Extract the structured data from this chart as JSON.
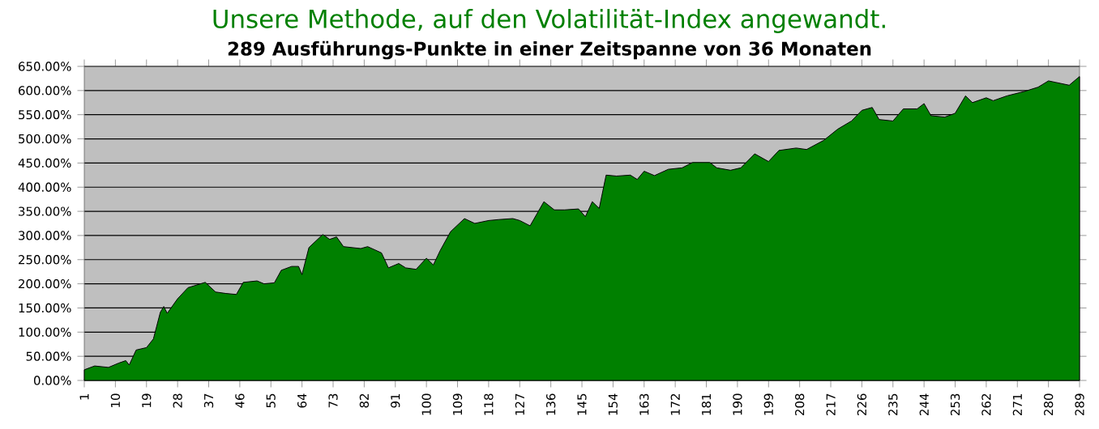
{
  "chart_data": {
    "type": "area",
    "title": "Unsere Methode, auf den Volatilität-Index angewandt.",
    "subtitle": "289 Ausführungs-Punkte in einer Zeitspanne von 36 Monaten",
    "x": [
      1,
      4,
      8,
      11,
      13,
      14,
      16,
      19,
      21,
      23,
      24,
      25,
      28,
      31,
      36,
      39,
      42,
      45,
      47,
      51,
      53,
      56,
      58,
      61,
      63,
      64,
      66,
      70,
      72,
      74,
      76,
      81,
      83,
      87,
      89,
      92,
      94,
      97,
      100,
      102,
      104,
      107,
      111,
      114,
      118,
      121,
      125,
      127,
      130,
      134,
      137,
      140,
      144,
      146,
      148,
      150,
      152,
      155,
      159,
      161,
      163,
      166,
      170,
      174,
      177,
      182,
      184,
      188,
      191,
      195,
      199,
      202,
      207,
      210,
      215,
      219,
      223,
      226,
      229,
      231,
      235,
      238,
      242,
      244,
      246,
      250,
      253,
      256,
      258,
      262,
      264,
      268,
      273,
      277,
      280,
      282,
      286,
      289
    ],
    "values": [
      22,
      30,
      27,
      36,
      41,
      32,
      63,
      68,
      86,
      141,
      153,
      139,
      169,
      192,
      203,
      183,
      180,
      178,
      203,
      206,
      200,
      202,
      228,
      236,
      236,
      219,
      275,
      302,
      292,
      297,
      277,
      273,
      277,
      264,
      233,
      242,
      233,
      230,
      253,
      239,
      269,
      308,
      335,
      325,
      331,
      333,
      335,
      331,
      320,
      370,
      353,
      353,
      355,
      339,
      370,
      356,
      425,
      423,
      425,
      416,
      433,
      424,
      437,
      440,
      451,
      451,
      440,
      435,
      440,
      469,
      453,
      476,
      481,
      478,
      497,
      520,
      537,
      559,
      565,
      540,
      537,
      562,
      562,
      573,
      548,
      545,
      553,
      589,
      575,
      585,
      579,
      589,
      598,
      607,
      620,
      617,
      611,
      629
    ],
    "color": "#008000",
    "grid": "y",
    "xlim": [
      1,
      289
    ],
    "ylim": [
      0,
      650
    ],
    "xticks": [
      1,
      10,
      19,
      28,
      37,
      46,
      55,
      64,
      73,
      82,
      91,
      100,
      109,
      118,
      127,
      136,
      145,
      154,
      163,
      172,
      181,
      190,
      199,
      208,
      217,
      226,
      235,
      244,
      253,
      262,
      271,
      280,
      289
    ],
    "yticks": [
      {
        "value": 0,
        "label": "0.00%"
      },
      {
        "value": 50,
        "label": "50.00%"
      },
      {
        "value": 100,
        "label": "100.00%"
      },
      {
        "value": 150,
        "label": "150.00%"
      },
      {
        "value": 200,
        "label": "200.00%"
      },
      {
        "value": 250,
        "label": "250.00%"
      },
      {
        "value": 300,
        "label": "300.00%"
      },
      {
        "value": 350,
        "label": "350.00%"
      },
      {
        "value": 400,
        "label": "400.00%"
      },
      {
        "value": 450,
        "label": "450.00%"
      },
      {
        "value": 500,
        "label": "500.00%"
      },
      {
        "value": 550,
        "label": "550.00%"
      },
      {
        "value": 600,
        "label": "600.00%"
      },
      {
        "value": 650,
        "label": "650.00%"
      }
    ]
  }
}
